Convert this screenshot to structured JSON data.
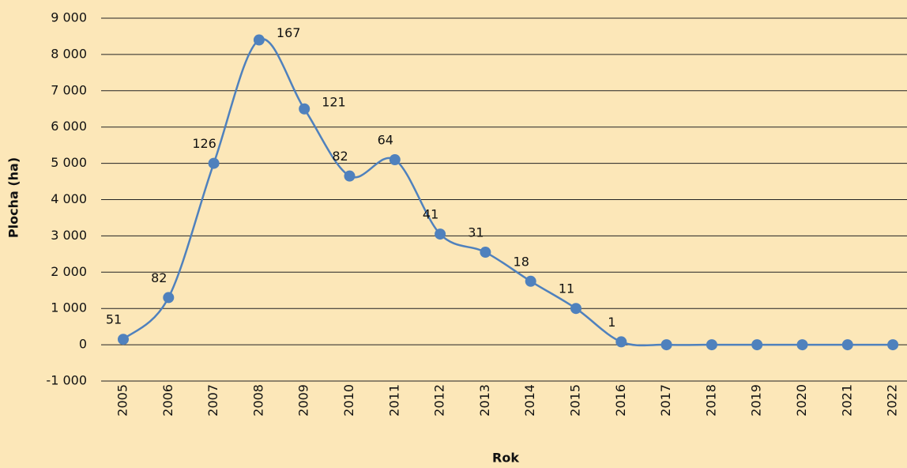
{
  "chart_data": {
    "type": "line",
    "x_label": "Rok",
    "y_label": "Plocha (ha)",
    "categories": [
      "2005",
      "2006",
      "2007",
      "2008",
      "2009",
      "2010",
      "2011",
      "2012",
      "2013",
      "2014",
      "2015",
      "2016",
      "2017",
      "2018",
      "2019",
      "2020",
      "2021",
      "2022"
    ],
    "series": [
      {
        "color": "#4f81bd",
        "values": [
          150,
          1300,
          5000,
          8400,
          6500,
          4650,
          5100,
          3050,
          2550,
          1750,
          1000,
          80,
          0,
          0,
          0,
          0,
          0,
          0
        ],
        "point_labels": [
          51,
          82,
          126,
          167,
          121,
          82,
          64,
          41,
          31,
          18,
          11,
          1,
          null,
          null,
          null,
          null,
          null,
          null
        ]
      }
    ],
    "ylim": [
      -1000,
      9000
    ],
    "yticks": [
      {
        "value": -1000,
        "label": "-1 000"
      },
      0,
      {
        "value": 1000,
        "label": "1 000"
      },
      {
        "value": 2000,
        "label": "2 000"
      },
      {
        "value": 3000,
        "label": "3 000"
      },
      {
        "value": 4000,
        "label": "4 000"
      },
      {
        "value": 5000,
        "label": "5 000"
      },
      {
        "value": 6000,
        "label": "6 000"
      },
      {
        "value": 7000,
        "label": "7 000"
      },
      {
        "value": 8000,
        "label": "8 000"
      },
      {
        "value": 9000,
        "label": "9 000"
      }
    ],
    "grid": true,
    "smooth": true
  }
}
